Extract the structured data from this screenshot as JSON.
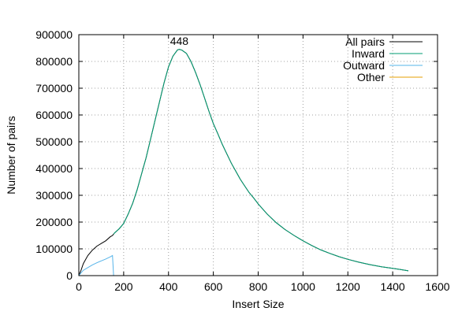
{
  "chart_data": {
    "type": "line",
    "xlabel": "Insert Size",
    "ylabel": "Number of pairs",
    "xlim": [
      0,
      1600
    ],
    "ylim": [
      0,
      900000
    ],
    "x_ticks": [
      0,
      200,
      400,
      600,
      800,
      1000,
      1200,
      1400,
      1600
    ],
    "y_ticks": [
      0,
      100000,
      200000,
      300000,
      400000,
      500000,
      600000,
      700000,
      800000,
      900000
    ],
    "grid": true,
    "legend_position": "top-right",
    "annotation": {
      "text": "448",
      "x": 448,
      "y": 868000
    },
    "x": [
      0,
      10,
      20,
      40,
      60,
      80,
      100,
      120,
      140,
      150,
      155,
      160,
      180,
      200,
      220,
      240,
      260,
      280,
      300,
      320,
      340,
      360,
      380,
      400,
      420,
      440,
      448,
      460,
      480,
      500,
      520,
      540,
      560,
      580,
      600,
      620,
      640,
      660,
      680,
      700,
      720,
      740,
      760,
      780,
      800,
      840,
      880,
      920,
      960,
      1000,
      1040,
      1080,
      1120,
      1160,
      1200,
      1250,
      1300,
      1350,
      1400,
      1440,
      1470
    ],
    "series": [
      {
        "name": "All pairs",
        "color": "#000000",
        "values": [
          0,
          20000,
          45000,
          75000,
          95000,
          110000,
          120000,
          130000,
          145000,
          150000,
          155000,
          160000,
          175000,
          195000,
          230000,
          270000,
          320000,
          380000,
          440000,
          510000,
          580000,
          650000,
          720000,
          780000,
          820000,
          843000,
          845000,
          842000,
          830000,
          800000,
          760000,
          715000,
          665000,
          615000,
          568000,
          530000,
          490000,
          455000,
          420000,
          390000,
          360000,
          335000,
          310000,
          290000,
          268000,
          230000,
          198000,
          172000,
          150000,
          130000,
          112000,
          96000,
          83000,
          71000,
          61000,
          50000,
          41000,
          33000,
          27000,
          22000,
          18000
        ]
      },
      {
        "name": "Inward",
        "color": "#009e73",
        "values": [
          null,
          null,
          null,
          null,
          null,
          null,
          null,
          null,
          null,
          null,
          155000,
          160000,
          175000,
          195000,
          230000,
          270000,
          320000,
          380000,
          440000,
          510000,
          580000,
          650000,
          720000,
          780000,
          820000,
          843000,
          845000,
          842000,
          830000,
          800000,
          760000,
          715000,
          665000,
          615000,
          568000,
          530000,
          490000,
          455000,
          420000,
          390000,
          360000,
          335000,
          310000,
          290000,
          268000,
          230000,
          198000,
          172000,
          150000,
          130000,
          112000,
          96000,
          83000,
          71000,
          61000,
          50000,
          41000,
          33000,
          27000,
          22000,
          18000
        ]
      },
      {
        "name": "Outward",
        "color": "#56b4e9",
        "values": [
          0,
          10000,
          20000,
          30000,
          40000,
          48000,
          55000,
          62000,
          70000,
          75000,
          0,
          null,
          null,
          null,
          null,
          null,
          null,
          null,
          null,
          null,
          null,
          null,
          null,
          null,
          null,
          null,
          null,
          null,
          null,
          null,
          null,
          null,
          null,
          null,
          null,
          null,
          null,
          null,
          null,
          null,
          null,
          null,
          null,
          null,
          null,
          null,
          null,
          null,
          null,
          null,
          null,
          null,
          null,
          null,
          null,
          null,
          null,
          null,
          null,
          null,
          null
        ]
      },
      {
        "name": "Other",
        "color": "#e69f00",
        "values": [
          0,
          0,
          0,
          0,
          0,
          0,
          0,
          0,
          0,
          0,
          0,
          null,
          null,
          null,
          null,
          null,
          null,
          null,
          null,
          null,
          null,
          null,
          null,
          null,
          null,
          null,
          null,
          null,
          null,
          null,
          null,
          null,
          null,
          null,
          null,
          null,
          null,
          null,
          null,
          null,
          null,
          null,
          null,
          null,
          null,
          null,
          null,
          null,
          null,
          null,
          null,
          null,
          null,
          null,
          null,
          null,
          null,
          null,
          null,
          null,
          null
        ]
      }
    ]
  }
}
